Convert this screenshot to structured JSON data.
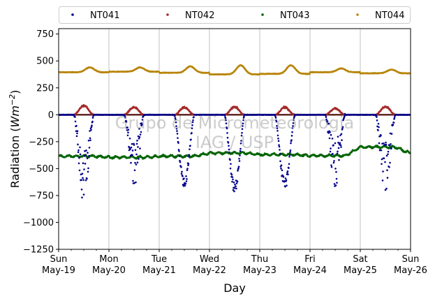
{
  "chart_data": {
    "type": "scatter",
    "xlabel": "Day",
    "ylabel": "Radiation",
    "ylabel_unit": "Wm",
    "ylabel_exp": "−2",
    "ylim": [
      -1250,
      800
    ],
    "xlim": [
      "2019-05-19",
      "2019-05-26"
    ],
    "y_ticks": [
      -1250,
      -1000,
      -750,
      -500,
      -250,
      0,
      250,
      500,
      750
    ],
    "y_tick_labels": [
      "−1250",
      "−1000",
      "−750",
      "−500",
      "−250",
      "0",
      "250",
      "500",
      "750"
    ],
    "x_ticks": [
      {
        "day": "Sun",
        "date": "May-19"
      },
      {
        "day": "Mon",
        "date": "May-20"
      },
      {
        "day": "Tue",
        "date": "May-21"
      },
      {
        "day": "Wed",
        "date": "May-22"
      },
      {
        "day": "Thu",
        "date": "May-23"
      },
      {
        "day": "Fri",
        "date": "May-24"
      },
      {
        "day": "Sat",
        "date": "May-25"
      },
      {
        "day": "Sun",
        "date": "May-26"
      }
    ],
    "grid": "vertical",
    "legend_position": "top",
    "watermark": [
      "Grupo de Micrometeorologia",
      "IAG / USP"
    ],
    "series": [
      {
        "name": "NT041",
        "color": "#00008b",
        "note": "daytime minima per day",
        "daily_min": [
          -840,
          -720,
          -680,
          -740,
          -700,
          -680,
          -750
        ],
        "night_level": 0
      },
      {
        "name": "NT042",
        "color": "#a52a2a",
        "daily_max": [
          95,
          80,
          75,
          80,
          75,
          65,
          85
        ],
        "night_level": 0
      },
      {
        "name": "NT043",
        "color": "#006400",
        "daily_level": [
          -385,
          -395,
          -385,
          -355,
          -370,
          -380,
          -300
        ],
        "final_level": -360
      },
      {
        "name": "NT044",
        "color": "#b8860b",
        "daily_peak": [
          440,
          440,
          450,
          460,
          460,
          430,
          420
        ],
        "night_level": [
          395,
          400,
          390,
          375,
          380,
          395,
          385
        ]
      }
    ]
  }
}
